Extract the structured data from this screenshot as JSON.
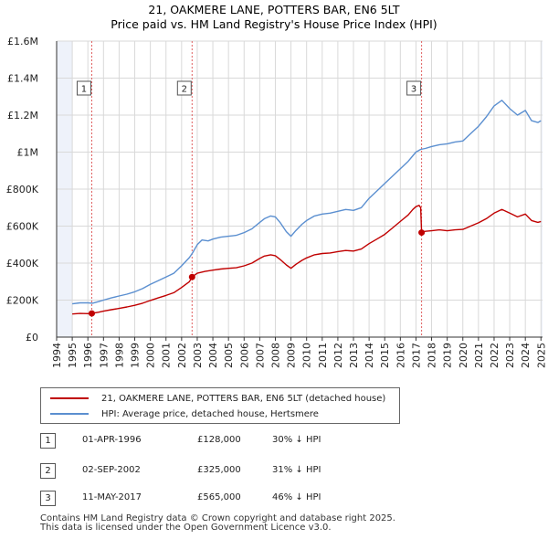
{
  "chart_data": {
    "type": "line",
    "title": "21, OAKMERE LANE, POTTERS BAR, EN6 5LT",
    "subtitle": "Price paid vs. HM Land Registry's House Price Index (HPI)",
    "xlim": [
      1994,
      2025.1
    ],
    "ylim": [
      0,
      1600000
    ],
    "x_ticks": [
      "1994",
      "1995",
      "1996",
      "1997",
      "1998",
      "1999",
      "2000",
      "2001",
      "2002",
      "2003",
      "2004",
      "2005",
      "2006",
      "2007",
      "2008",
      "2009",
      "2010",
      "2011",
      "2012",
      "2013",
      "2014",
      "2015",
      "2016",
      "2017",
      "2018",
      "2019",
      "2020",
      "2021",
      "2022",
      "2023",
      "2024",
      "2025"
    ],
    "y_ticks": [
      {
        "value": 0,
        "label": "£0"
      },
      {
        "value": 200000,
        "label": "£200K"
      },
      {
        "value": 400000,
        "label": "£400K"
      },
      {
        "value": 600000,
        "label": "£600K"
      },
      {
        "value": 800000,
        "label": "£800K"
      },
      {
        "value": 1000000,
        "label": "£1M"
      },
      {
        "value": 1200000,
        "label": "£1.2M"
      },
      {
        "value": 1400000,
        "label": "£1.4M"
      },
      {
        "value": 1600000,
        "label": "£1.6M"
      }
    ],
    "series": [
      {
        "name": "HPI: Average price, detached house, Hertsmere",
        "color": "#5b8fd0",
        "points": [
          [
            1995.0,
            180000
          ],
          [
            1995.5,
            185000
          ],
          [
            1996.0,
            185000
          ],
          [
            1996.3,
            183000
          ],
          [
            1996.7,
            192000
          ],
          [
            1997.0,
            200000
          ],
          [
            1997.5,
            212000
          ],
          [
            1998.0,
            222000
          ],
          [
            1998.5,
            232000
          ],
          [
            1999.0,
            245000
          ],
          [
            1999.5,
            262000
          ],
          [
            2000.0,
            285000
          ],
          [
            2000.5,
            305000
          ],
          [
            2001.0,
            325000
          ],
          [
            2001.5,
            345000
          ],
          [
            2002.0,
            385000
          ],
          [
            2002.5,
            430000
          ],
          [
            2002.7,
            455000
          ],
          [
            2003.0,
            500000
          ],
          [
            2003.3,
            525000
          ],
          [
            2003.7,
            520000
          ],
          [
            2004.0,
            530000
          ],
          [
            2004.5,
            540000
          ],
          [
            2005.0,
            545000
          ],
          [
            2005.5,
            550000
          ],
          [
            2006.0,
            565000
          ],
          [
            2006.5,
            585000
          ],
          [
            2007.0,
            620000
          ],
          [
            2007.3,
            640000
          ],
          [
            2007.7,
            655000
          ],
          [
            2008.0,
            650000
          ],
          [
            2008.3,
            620000
          ],
          [
            2008.7,
            570000
          ],
          [
            2009.0,
            545000
          ],
          [
            2009.3,
            575000
          ],
          [
            2009.7,
            610000
          ],
          [
            2010.0,
            630000
          ],
          [
            2010.5,
            655000
          ],
          [
            2011.0,
            665000
          ],
          [
            2011.5,
            670000
          ],
          [
            2012.0,
            680000
          ],
          [
            2012.5,
            690000
          ],
          [
            2013.0,
            685000
          ],
          [
            2013.5,
            700000
          ],
          [
            2014.0,
            750000
          ],
          [
            2014.5,
            790000
          ],
          [
            2015.0,
            830000
          ],
          [
            2015.5,
            870000
          ],
          [
            2016.0,
            910000
          ],
          [
            2016.5,
            950000
          ],
          [
            2016.8,
            980000
          ],
          [
            2017.0,
            1000000
          ],
          [
            2017.3,
            1015000
          ],
          [
            2017.6,
            1020000
          ],
          [
            2018.0,
            1030000
          ],
          [
            2018.5,
            1040000
          ],
          [
            2019.0,
            1045000
          ],
          [
            2019.5,
            1055000
          ],
          [
            2020.0,
            1060000
          ],
          [
            2020.5,
            1100000
          ],
          [
            2021.0,
            1140000
          ],
          [
            2021.5,
            1190000
          ],
          [
            2022.0,
            1250000
          ],
          [
            2022.5,
            1280000
          ],
          [
            2023.0,
            1235000
          ],
          [
            2023.5,
            1200000
          ],
          [
            2024.0,
            1225000
          ],
          [
            2024.4,
            1170000
          ],
          [
            2024.8,
            1160000
          ],
          [
            2025.0,
            1170000
          ]
        ]
      },
      {
        "name": "21, OAKMERE LANE, POTTERS BAR, EN6 5LT (detached house)",
        "color": "#c00000",
        "points": [
          [
            1995.0,
            125000
          ],
          [
            1995.5,
            128000
          ],
          [
            1996.0,
            127000
          ],
          [
            1996.25,
            128000
          ],
          [
            1996.7,
            135000
          ],
          [
            1997.0,
            140000
          ],
          [
            1997.5,
            148000
          ],
          [
            1998.0,
            155000
          ],
          [
            1998.5,
            163000
          ],
          [
            1999.0,
            172000
          ],
          [
            1999.5,
            183000
          ],
          [
            2000.0,
            198000
          ],
          [
            2000.5,
            212000
          ],
          [
            2001.0,
            225000
          ],
          [
            2001.5,
            240000
          ],
          [
            2002.0,
            268000
          ],
          [
            2002.5,
            300000
          ],
          [
            2002.67,
            325000
          ],
          [
            2003.0,
            345000
          ],
          [
            2003.5,
            355000
          ],
          [
            2004.0,
            362000
          ],
          [
            2004.5,
            368000
          ],
          [
            2005.0,
            372000
          ],
          [
            2005.5,
            375000
          ],
          [
            2006.0,
            385000
          ],
          [
            2006.5,
            400000
          ],
          [
            2007.0,
            425000
          ],
          [
            2007.3,
            438000
          ],
          [
            2007.7,
            445000
          ],
          [
            2008.0,
            440000
          ],
          [
            2008.3,
            420000
          ],
          [
            2008.7,
            390000
          ],
          [
            2009.0,
            372000
          ],
          [
            2009.3,
            392000
          ],
          [
            2009.7,
            415000
          ],
          [
            2010.0,
            428000
          ],
          [
            2010.5,
            445000
          ],
          [
            2011.0,
            452000
          ],
          [
            2011.5,
            455000
          ],
          [
            2012.0,
            462000
          ],
          [
            2012.5,
            468000
          ],
          [
            2013.0,
            465000
          ],
          [
            2013.5,
            476000
          ],
          [
            2014.0,
            505000
          ],
          [
            2014.5,
            530000
          ],
          [
            2015.0,
            555000
          ],
          [
            2015.5,
            590000
          ],
          [
            2016.0,
            625000
          ],
          [
            2016.5,
            660000
          ],
          [
            2016.8,
            690000
          ],
          [
            2017.0,
            705000
          ],
          [
            2017.2,
            712000
          ],
          [
            2017.3,
            700000
          ],
          [
            2017.36,
            565000
          ],
          [
            2017.6,
            572000
          ],
          [
            2018.0,
            575000
          ],
          [
            2018.5,
            580000
          ],
          [
            2019.0,
            575000
          ],
          [
            2019.5,
            580000
          ],
          [
            2020.0,
            582000
          ],
          [
            2020.5,
            600000
          ],
          [
            2021.0,
            618000
          ],
          [
            2021.5,
            640000
          ],
          [
            2022.0,
            670000
          ],
          [
            2022.5,
            690000
          ],
          [
            2023.0,
            670000
          ],
          [
            2023.5,
            650000
          ],
          [
            2024.0,
            665000
          ],
          [
            2024.4,
            630000
          ],
          [
            2024.8,
            620000
          ],
          [
            2025.0,
            625000
          ]
        ]
      }
    ],
    "transactions": [
      {
        "num": "1",
        "date": "01-APR-1996",
        "x": 1996.25,
        "price": 128000,
        "price_label": "£128,000",
        "hpi": "30% ↓ HPI"
      },
      {
        "num": "2",
        "date": "02-SEP-2002",
        "x": 2002.67,
        "price": 325000,
        "price_label": "£325,000",
        "hpi": "31% ↓ HPI"
      },
      {
        "num": "3",
        "date": "11-MAY-2017",
        "x": 2017.36,
        "price": 565000,
        "price_label": "£565,000",
        "hpi": "46% ↓ HPI"
      }
    ]
  },
  "legend": {
    "property_label": "21, OAKMERE LANE, POTTERS BAR, EN6 5LT (detached house)",
    "hpi_label": "HPI: Average price, detached house, Hertsmere"
  },
  "footer": {
    "line1": "Contains HM Land Registry data © Crown copyright and database right 2025.",
    "line2": "This data is licensed under the Open Government Licence v3.0."
  }
}
